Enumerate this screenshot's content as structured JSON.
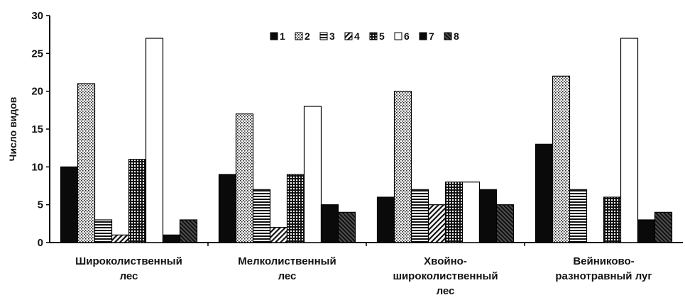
{
  "chart_data": {
    "type": "bar",
    "title": "",
    "xlabel": "",
    "ylabel": "Число видов",
    "ylim": [
      0,
      30
    ],
    "yticks": [
      0,
      5,
      10,
      15,
      20,
      25,
      30
    ],
    "grid": false,
    "legend_position": "top-center",
    "categories": [
      [
        "Широколиственный",
        "лес"
      ],
      [
        "Мелколиственный",
        "лес"
      ],
      [
        "Хвойно-",
        "широколиственный",
        "лес"
      ],
      [
        "Вейниково-",
        "разнотравный луг"
      ]
    ],
    "series": [
      {
        "name": "1",
        "pattern": "solid-black",
        "values": [
          10,
          9,
          6,
          13
        ]
      },
      {
        "name": "2",
        "pattern": "dots",
        "values": [
          21,
          17,
          20,
          22
        ]
      },
      {
        "name": "3",
        "pattern": "horizontal-lines",
        "values": [
          3,
          7,
          7,
          7
        ]
      },
      {
        "name": "4",
        "pattern": "diagonal-hatch",
        "values": [
          1,
          2,
          5,
          0
        ]
      },
      {
        "name": "5",
        "pattern": "grid",
        "values": [
          11,
          9,
          8,
          6
        ]
      },
      {
        "name": "6",
        "pattern": "white",
        "values": [
          27,
          18,
          8,
          27
        ]
      },
      {
        "name": "7",
        "pattern": "solid-black",
        "values": [
          1,
          5,
          7,
          3
        ]
      },
      {
        "name": "8",
        "pattern": "dense-diagonal",
        "values": [
          3,
          4,
          5,
          4
        ]
      }
    ]
  }
}
